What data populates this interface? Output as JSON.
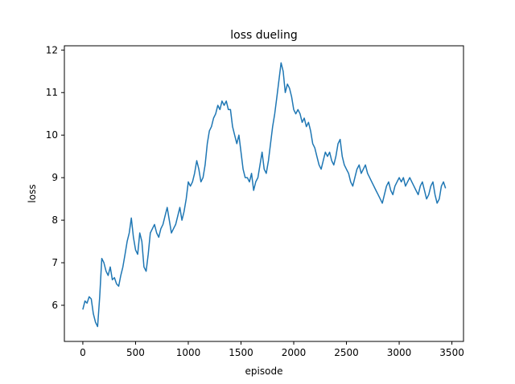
{
  "chart_data": {
    "type": "line",
    "title": "loss dueling",
    "xlabel": "episode",
    "ylabel": "loss",
    "xlim": [
      -175,
      3610
    ],
    "ylim": [
      5.15,
      12.1
    ],
    "xticks": [
      0,
      500,
      1000,
      1500,
      2000,
      2500,
      3000,
      3500
    ],
    "yticks": [
      6,
      7,
      8,
      9,
      10,
      11,
      12
    ],
    "grid": false,
    "legend": "none",
    "series_color": "#1f77b4",
    "series": [
      {
        "x": [
          0,
          20,
          40,
          60,
          80,
          100,
          120,
          140,
          160,
          180,
          200,
          220,
          240,
          260,
          280,
          300,
          320,
          340,
          360,
          380,
          400,
          420,
          440,
          460,
          480,
          500,
          520,
          540,
          560,
          580,
          600,
          620,
          640,
          660,
          680,
          700,
          720,
          740,
          760,
          780,
          800,
          820,
          840,
          860,
          880,
          900,
          920,
          940,
          960,
          980,
          1000,
          1020,
          1040,
          1060,
          1080,
          1100,
          1120,
          1140,
          1160,
          1180,
          1200,
          1220,
          1240,
          1260,
          1280,
          1300,
          1320,
          1340,
          1360,
          1380,
          1400,
          1420,
          1440,
          1460,
          1480,
          1500,
          1520,
          1540,
          1560,
          1580,
          1600,
          1620,
          1640,
          1660,
          1680,
          1700,
          1720,
          1740,
          1760,
          1780,
          1800,
          1820,
          1840,
          1860,
          1880,
          1900,
          1920,
          1940,
          1960,
          1980,
          2000,
          2020,
          2040,
          2060,
          2080,
          2100,
          2120,
          2140,
          2160,
          2180,
          2200,
          2220,
          2240,
          2260,
          2280,
          2300,
          2320,
          2340,
          2360,
          2380,
          2400,
          2420,
          2440,
          2460,
          2480,
          2500,
          2520,
          2540,
          2560,
          2580,
          2600,
          2620,
          2640,
          2660,
          2680,
          2700,
          2720,
          2740,
          2760,
          2780,
          2800,
          2820,
          2840,
          2860,
          2880,
          2900,
          2920,
          2940,
          2960,
          2980,
          3000,
          3020,
          3040,
          3060,
          3080,
          3100,
          3120,
          3140,
          3160,
          3180,
          3200,
          3220,
          3240,
          3260,
          3280,
          3300,
          3320,
          3340,
          3360,
          3380,
          3400,
          3420,
          3440
        ],
        "values": [
          5.9,
          6.1,
          6.05,
          6.2,
          6.15,
          5.8,
          5.6,
          5.5,
          6.2,
          7.1,
          7.0,
          6.8,
          6.7,
          6.9,
          6.6,
          6.65,
          6.5,
          6.45,
          6.7,
          6.9,
          7.2,
          7.5,
          7.7,
          8.05,
          7.6,
          7.3,
          7.2,
          7.7,
          7.5,
          6.9,
          6.8,
          7.2,
          7.7,
          7.8,
          7.9,
          7.7,
          7.6,
          7.8,
          7.9,
          8.1,
          8.3,
          8.0,
          7.7,
          7.8,
          7.9,
          8.1,
          8.3,
          8.0,
          8.2,
          8.5,
          8.9,
          8.8,
          8.9,
          9.1,
          9.4,
          9.2,
          8.9,
          9.0,
          9.3,
          9.8,
          10.1,
          10.2,
          10.4,
          10.5,
          10.7,
          10.6,
          10.8,
          10.7,
          10.8,
          10.6,
          10.6,
          10.2,
          10.0,
          9.8,
          10.0,
          9.6,
          9.2,
          9.0,
          9.0,
          8.9,
          9.1,
          8.7,
          8.9,
          9.0,
          9.3,
          9.6,
          9.2,
          9.1,
          9.4,
          9.8,
          10.2,
          10.5,
          10.9,
          11.3,
          11.7,
          11.5,
          11.0,
          11.2,
          11.1,
          10.9,
          10.6,
          10.5,
          10.6,
          10.5,
          10.3,
          10.4,
          10.2,
          10.3,
          10.1,
          9.8,
          9.7,
          9.5,
          9.3,
          9.2,
          9.4,
          9.6,
          9.5,
          9.6,
          9.4,
          9.3,
          9.5,
          9.8,
          9.9,
          9.5,
          9.3,
          9.2,
          9.1,
          8.9,
          8.8,
          9.0,
          9.2,
          9.3,
          9.1,
          9.2,
          9.3,
          9.1,
          9.0,
          8.9,
          8.8,
          8.7,
          8.6,
          8.5,
          8.4,
          8.6,
          8.8,
          8.9,
          8.7,
          8.6,
          8.8,
          8.9,
          9.0,
          8.9,
          9.0,
          8.8,
          8.9,
          9.0,
          8.9,
          8.8,
          8.7,
          8.6,
          8.8,
          8.9,
          8.7,
          8.5,
          8.6,
          8.8,
          8.9,
          8.6,
          8.4,
          8.5,
          8.8,
          8.9,
          8.75
        ]
      }
    ]
  }
}
